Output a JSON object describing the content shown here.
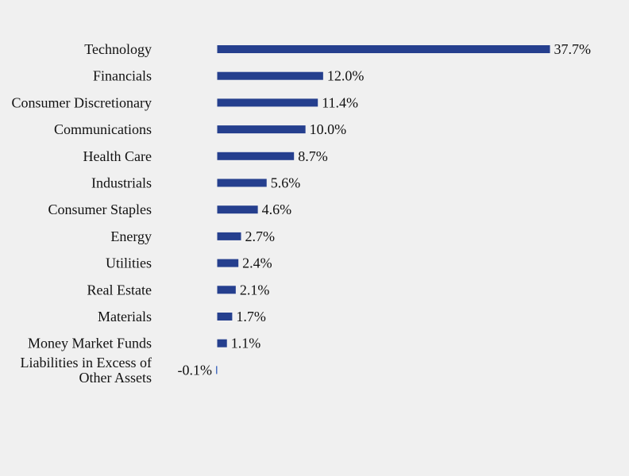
{
  "chart_data": {
    "type": "bar",
    "orientation": "horizontal",
    "categories": [
      "Technology",
      "Financials",
      "Consumer Discretionary",
      "Communications",
      "Health Care",
      "Industrials",
      "Consumer Staples",
      "Energy",
      "Utilities",
      "Real Estate",
      "Materials",
      "Money Market Funds",
      "Liabilities in Excess of Other Assets"
    ],
    "category_lines": [
      [
        "Technology"
      ],
      [
        "Financials"
      ],
      [
        "Consumer Discretionary"
      ],
      [
        "Communications"
      ],
      [
        "Health Care"
      ],
      [
        "Industrials"
      ],
      [
        "Consumer Staples"
      ],
      [
        "Energy"
      ],
      [
        "Utilities"
      ],
      [
        "Real Estate"
      ],
      [
        "Materials"
      ],
      [
        "Money Market Funds"
      ],
      [
        "Liabilities in Excess of",
        "Other Assets"
      ]
    ],
    "values": [
      37.7,
      12.0,
      11.4,
      10.0,
      8.7,
      5.6,
      4.6,
      2.7,
      2.4,
      2.1,
      1.7,
      1.1,
      -0.1
    ],
    "value_labels": [
      "37.7%",
      "12.0%",
      "11.4%",
      "10.0%",
      "8.7%",
      "5.6%",
      "4.6%",
      "2.7%",
      "2.4%",
      "2.1%",
      "1.7%",
      "1.1%",
      "-0.1%"
    ],
    "unit": "%",
    "title": "",
    "xlabel": "",
    "ylabel": "",
    "xlim": [
      0,
      37.7
    ],
    "grid": false,
    "legend": "none",
    "bar_color": "#253f8e",
    "background_color": "#f0f0f0"
  }
}
